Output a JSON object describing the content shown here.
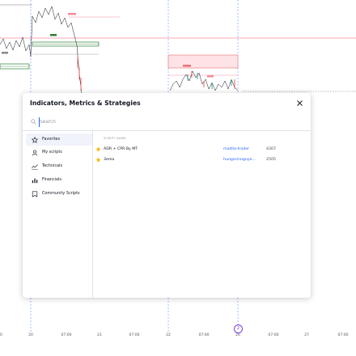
{
  "dialog": {
    "title": "Indicators, Metrics & Strategies",
    "search_placeholder": "Search"
  },
  "sidebar": {
    "items": [
      {
        "label": "Favorites",
        "icon": "star-outline-icon"
      },
      {
        "label": "My scripts",
        "icon": "user-icon"
      },
      {
        "label": "Technicals",
        "icon": "technicals-icon"
      },
      {
        "label": "Financials",
        "icon": "bar-chart-icon"
      },
      {
        "label": "Community Scripts",
        "icon": "bookmark-icon"
      }
    ]
  },
  "list": {
    "header": "SCRIPT NAME",
    "rows": [
      {
        "name": "ADR + CPR By MT",
        "author": "madlia-trader",
        "count": "4307"
      },
      {
        "name": "3ema",
        "author": "hungarinnguye…",
        "count": "2505"
      }
    ]
  },
  "chart": {
    "time_axis": [
      "20",
      "20",
      "07:00",
      "21",
      "07:00",
      "22",
      "07:00",
      "26",
      "07:00",
      "27",
      "07:00"
    ],
    "badge": "2",
    "colors": {
      "up": "#26a69a",
      "down": "#ef5350",
      "resistance": "#f28b9b",
      "support": "#2e7d32"
    }
  }
}
